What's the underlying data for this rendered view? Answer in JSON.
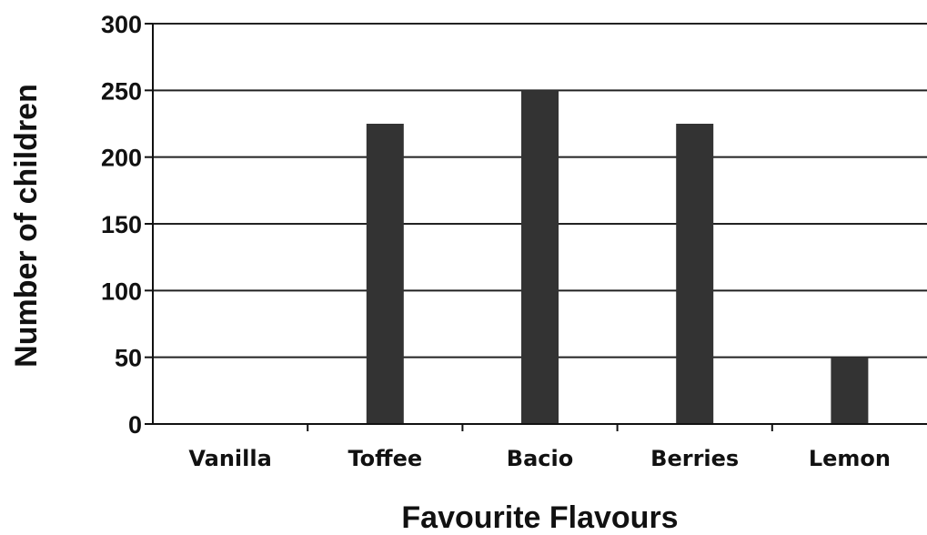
{
  "chart_data": {
    "type": "bar",
    "categories": [
      "Vanilla",
      "Toffee",
      "Bacio",
      "Berries",
      "Lemon"
    ],
    "values": [
      0,
      225,
      250,
      225,
      50
    ],
    "title": "",
    "xlabel": "Favourite Flavours",
    "ylabel": "Number of children",
    "ylim": [
      0,
      300
    ],
    "yticks": [
      0,
      50,
      100,
      150,
      200,
      250,
      300
    ],
    "grid": true,
    "legend": "none",
    "colors": {
      "bar": "#333333",
      "grid": "#222222",
      "axis": "#111111"
    }
  }
}
